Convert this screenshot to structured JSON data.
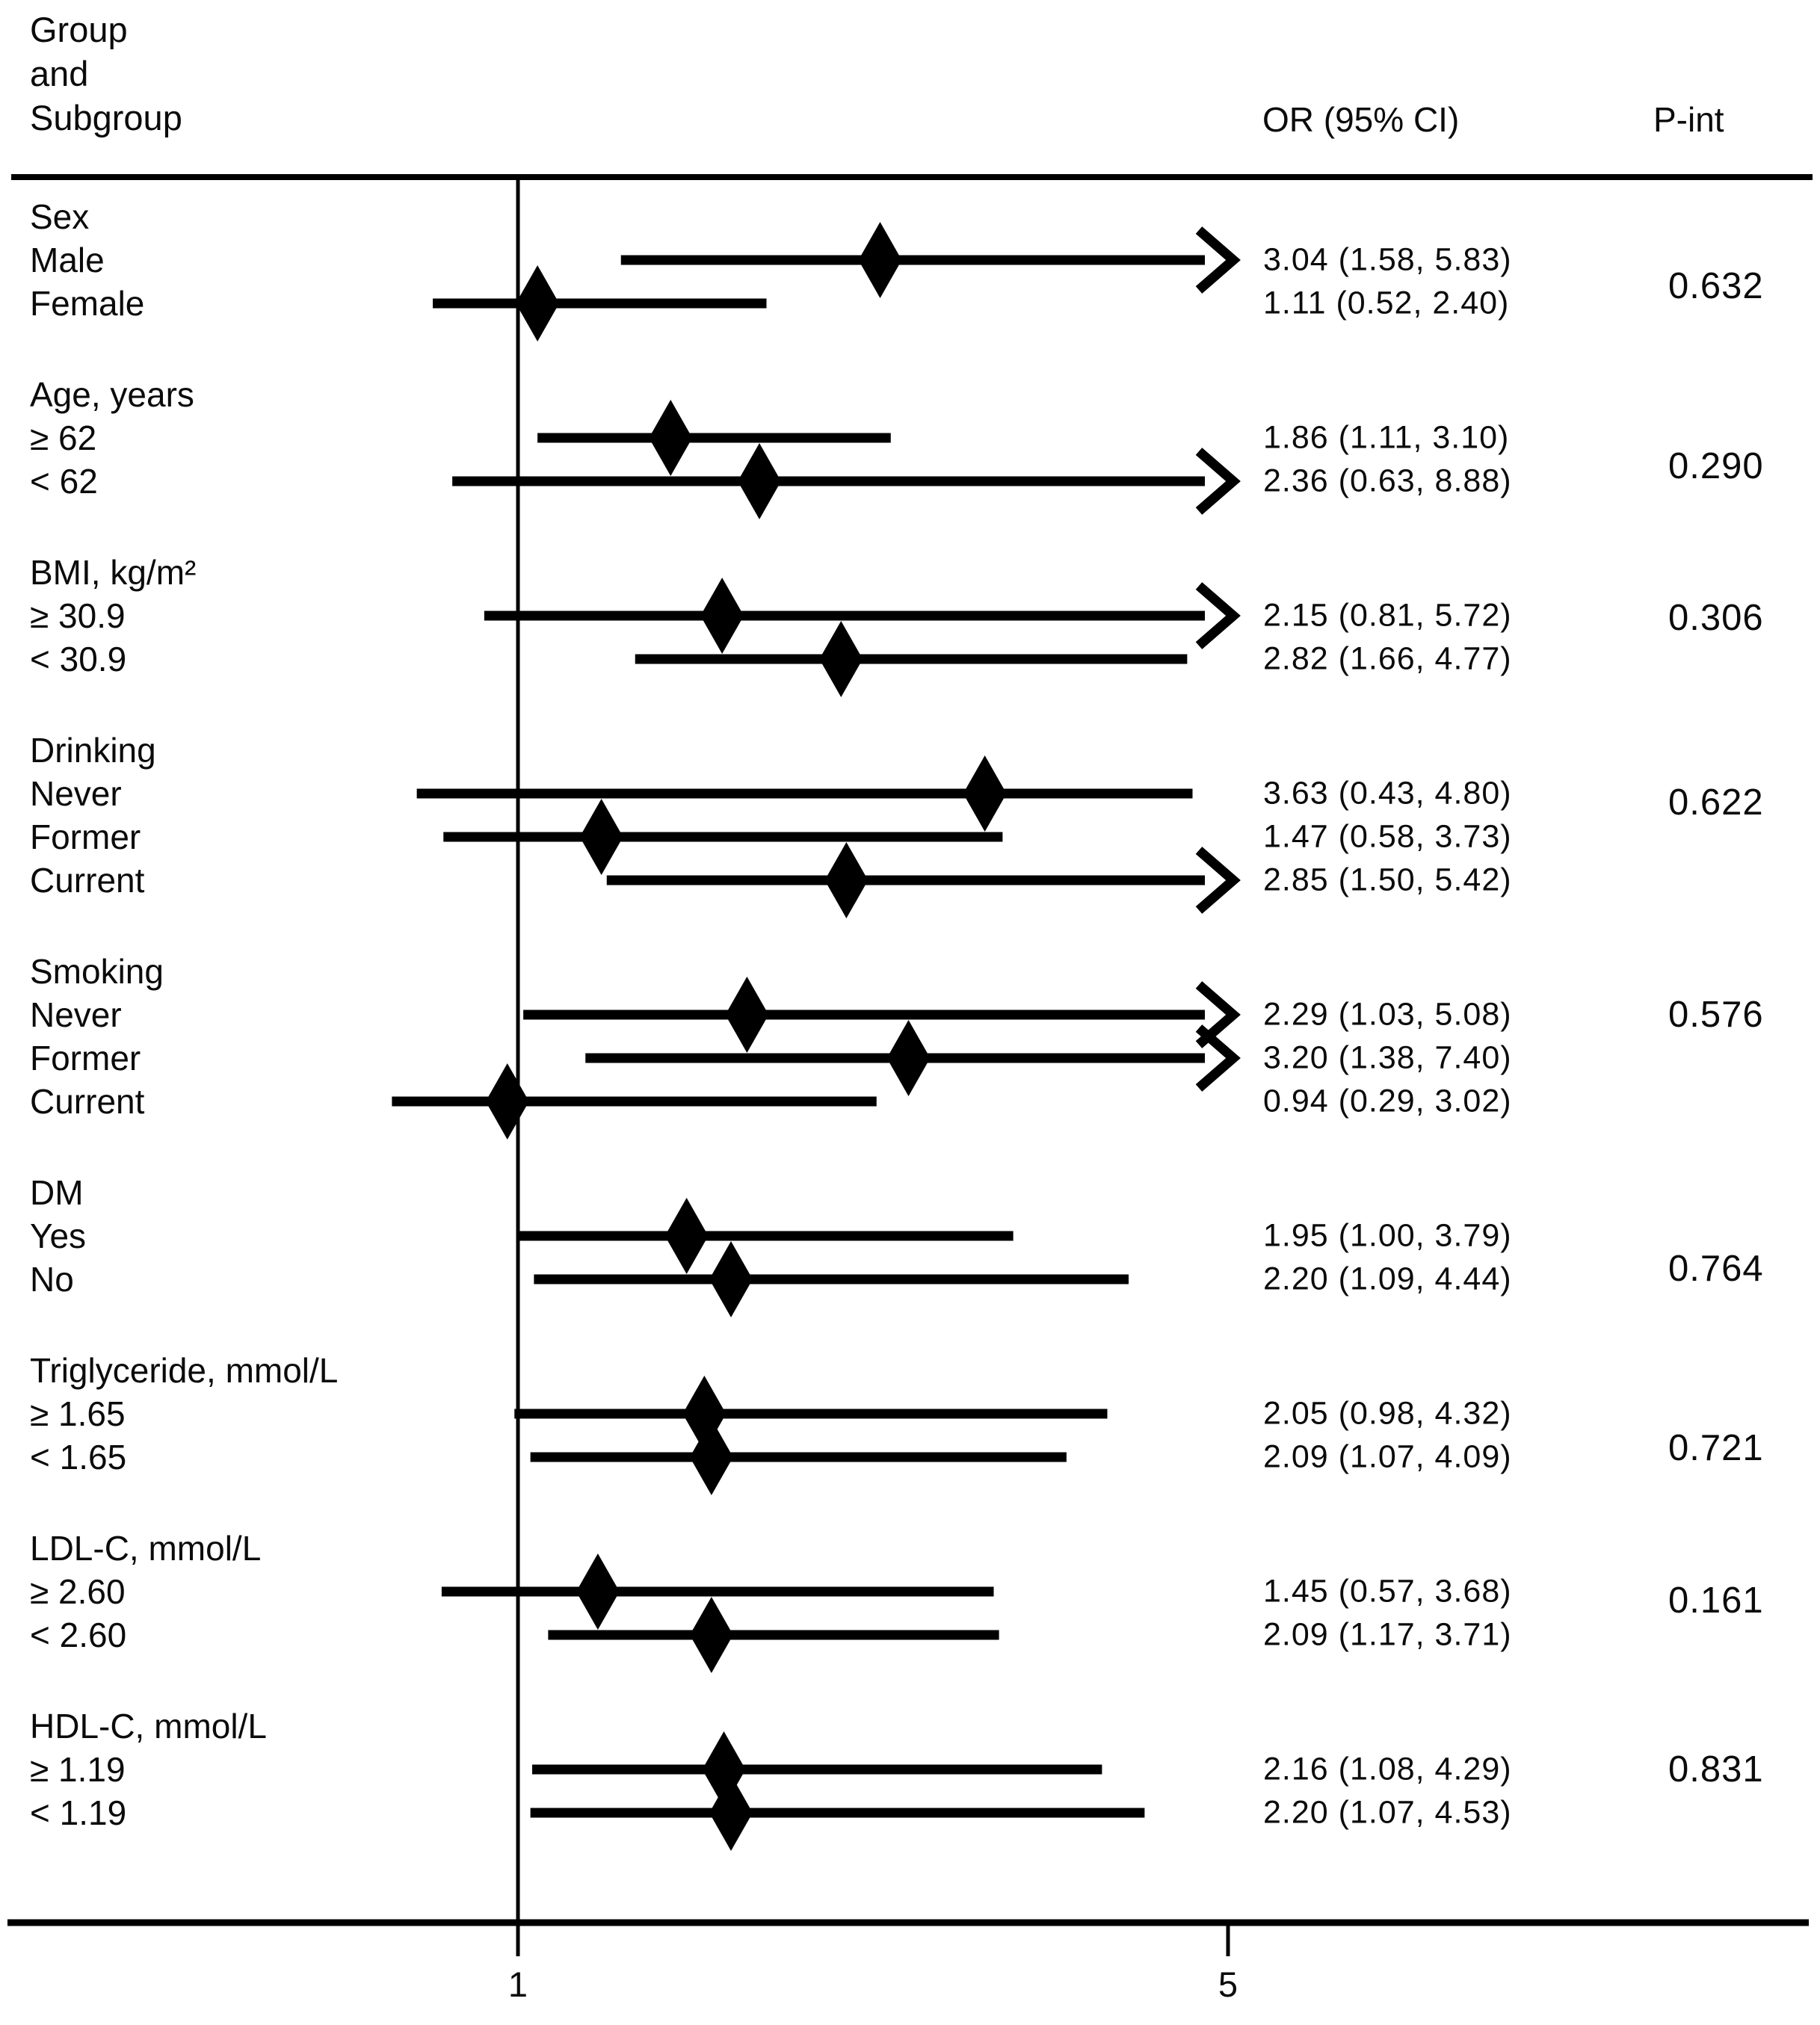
{
  "header": {
    "group_column": [
      "Group",
      "and",
      "Subgroup"
    ],
    "or_column": "OR (95% CI)",
    "pint_column": "P-int"
  },
  "axis": {
    "scale": "linear",
    "tick_labels": [
      "1",
      "5"
    ],
    "tick_values": [
      1,
      5
    ],
    "reference_value": 1,
    "arrow_when_upper_exceeds": 5
  },
  "colors": {
    "foreground": "#000000",
    "background": "#ffffff"
  },
  "chart_data": {
    "type": "forest",
    "title": "",
    "or_column_label": "OR (95% CI)",
    "pint_column_label": "P-int",
    "x_axis": {
      "scale": "linear",
      "ticks": [
        1,
        5
      ],
      "reference_line": 1,
      "clip_upper": 5
    },
    "groups": [
      {
        "label": "Sex",
        "p_int": "0.632",
        "rows": [
          {
            "label": "Male",
            "or": 3.04,
            "ci_low": 1.58,
            "ci_high": 5.83,
            "or_text": "3.04 (1.58, 5.83)",
            "arrow": true
          },
          {
            "label": "Female",
            "or": 1.11,
            "ci_low": 0.52,
            "ci_high": 2.4,
            "or_text": "1.11 (0.52, 2.40)",
            "arrow": false
          }
        ]
      },
      {
        "label": "Age, years",
        "p_int": "0.290",
        "rows": [
          {
            "label": "≥ 62",
            "or": 1.86,
            "ci_low": 1.11,
            "ci_high": 3.1,
            "or_text": "1.86 (1.11, 3.10)",
            "arrow": false
          },
          {
            "label": "< 62",
            "or": 2.36,
            "ci_low": 0.63,
            "ci_high": 8.88,
            "or_text": "2.36 (0.63, 8.88)",
            "arrow": true
          }
        ]
      },
      {
        "label": "BMI, kg/m²",
        "p_int": "0.306",
        "rows": [
          {
            "label": "≥ 30.9",
            "or": 2.15,
            "ci_low": 0.81,
            "ci_high": 5.72,
            "or_text": "2.15 (0.81, 5.72)",
            "arrow": true
          },
          {
            "label": "< 30.9",
            "or": 2.82,
            "ci_low": 1.66,
            "ci_high": 4.77,
            "or_text": "2.82 (1.66, 4.77)",
            "arrow": false
          }
        ]
      },
      {
        "label": "Drinking",
        "p_int": "0.622",
        "rows": [
          {
            "label": "Never",
            "or": 3.63,
            "ci_low": 0.43,
            "ci_high": 4.8,
            "or_text": "3.63 (0.43, 4.80)",
            "arrow": false
          },
          {
            "label": "Former",
            "or": 1.47,
            "ci_low": 0.58,
            "ci_high": 3.73,
            "or_text": "1.47 (0.58, 3.73)",
            "arrow": false
          },
          {
            "label": "Current",
            "or": 2.85,
            "ci_low": 1.5,
            "ci_high": 5.42,
            "or_text": "2.85 (1.50, 5.42)",
            "arrow": true
          }
        ]
      },
      {
        "label": "Smoking",
        "p_int": "0.576",
        "rows": [
          {
            "label": "Never",
            "or": 2.29,
            "ci_low": 1.03,
            "ci_high": 5.08,
            "or_text": "2.29 (1.03, 5.08)",
            "arrow": true
          },
          {
            "label": "Former",
            "or": 3.2,
            "ci_low": 1.38,
            "ci_high": 7.4,
            "or_text": "3.20 (1.38, 7.40)",
            "arrow": true
          },
          {
            "label": "Current",
            "or": 0.94,
            "ci_low": 0.29,
            "ci_high": 3.02,
            "or_text": "0.94 (0.29, 3.02)",
            "arrow": false
          }
        ]
      },
      {
        "label": "DM",
        "p_int": "0.764",
        "rows": [
          {
            "label": "Yes",
            "or": 1.95,
            "ci_low": 1.0,
            "ci_high": 3.79,
            "or_text": "1.95 (1.00, 3.79)",
            "arrow": false
          },
          {
            "label": "No",
            "or": 2.2,
            "ci_low": 1.09,
            "ci_high": 4.44,
            "or_text": "2.20 (1.09, 4.44)",
            "arrow": false
          }
        ]
      },
      {
        "label": "Triglyceride, mmol/L",
        "p_int": "0.721",
        "rows": [
          {
            "label": "≥ 1.65",
            "or": 2.05,
            "ci_low": 0.98,
            "ci_high": 4.32,
            "or_text": "2.05 (0.98, 4.32)",
            "arrow": false
          },
          {
            "label": "< 1.65",
            "or": 2.09,
            "ci_low": 1.07,
            "ci_high": 4.09,
            "or_text": "2.09 (1.07, 4.09)",
            "arrow": false
          }
        ]
      },
      {
        "label": "LDL-C, mmol/L",
        "p_int": "0.161",
        "rows": [
          {
            "label": "≥ 2.60",
            "or": 1.45,
            "ci_low": 0.57,
            "ci_high": 3.68,
            "or_text": "1.45 (0.57, 3.68)",
            "arrow": false
          },
          {
            "label": "< 2.60",
            "or": 2.09,
            "ci_low": 1.17,
            "ci_high": 3.71,
            "or_text": "2.09 (1.17, 3.71)",
            "arrow": false
          }
        ]
      },
      {
        "label": "HDL-C, mmol/L",
        "p_int": "0.831",
        "rows": [
          {
            "label": "≥ 1.19",
            "or": 2.16,
            "ci_low": 1.08,
            "ci_high": 4.29,
            "or_text": "2.16 (1.08, 4.29)",
            "arrow": false
          },
          {
            "label": "< 1.19",
            "or": 2.2,
            "ci_low": 1.07,
            "ci_high": 4.53,
            "or_text": "2.20 (1.07, 4.53)",
            "arrow": false
          }
        ]
      }
    ]
  }
}
